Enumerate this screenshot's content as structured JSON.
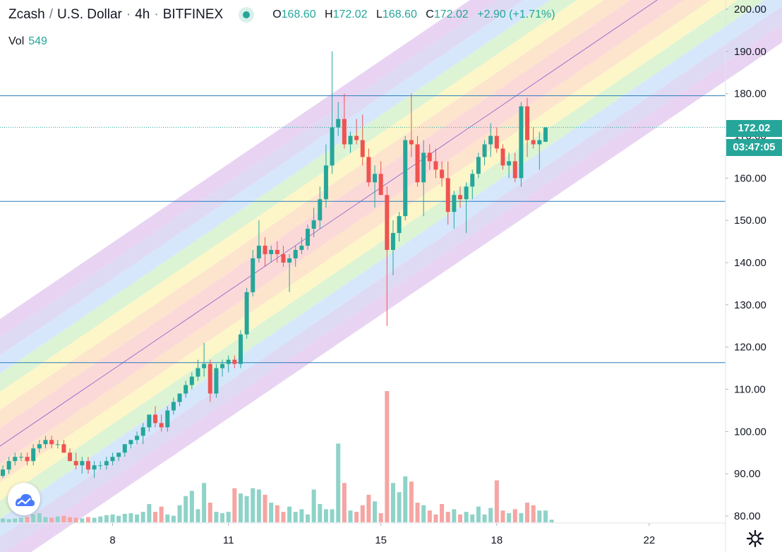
{
  "header": {
    "symbol": "Zcash",
    "quote": "U.S. Dollar",
    "interval": "4h",
    "exchange": "BITFINEX",
    "separator": "/",
    "dot": "·",
    "open_label": "O",
    "open": "168.60",
    "high_label": "H",
    "high": "172.02",
    "low_label": "L",
    "low": "168.60",
    "close_label": "C",
    "close": "172.02",
    "change": "+2.90 (+1.71%)",
    "vol_label": "Vol",
    "vol": "549"
  },
  "price_tag": {
    "price": "172.02",
    "countdown": "03:47:05"
  },
  "colors": {
    "up": "#26a69a",
    "down": "#ef5350",
    "hline": "#2a7bbd",
    "axis_text": "#131722"
  },
  "icons": {
    "logo": "tradingview-cloud-icon",
    "settings": "gear-icon"
  },
  "chart_data": {
    "type": "candlestick",
    "y_axis": {
      "min": 80,
      "max": 200,
      "ticks": [
        "80.00",
        "90.00",
        "100.00",
        "110.00",
        "120.00",
        "130.00",
        "140.00",
        "150.00",
        "160.00",
        "170.00",
        "180.00",
        "190.00",
        "200.00"
      ]
    },
    "x_axis": {
      "ticks": [
        "8",
        "11",
        "15",
        "18",
        "22"
      ]
    },
    "horizontal_lines": [
      179.5,
      154.5,
      116.3
    ],
    "last_price_line": 172.02,
    "rainbow_channel": {
      "start_mid": 97,
      "slope_per_bar": 0.98,
      "band_width": 4.3,
      "bands": 7
    },
    "candles": [
      {
        "o": 89.5,
        "h": 92,
        "l": 89,
        "c": 91
      },
      {
        "o": 91,
        "h": 94,
        "l": 90,
        "c": 93
      },
      {
        "o": 93,
        "h": 95,
        "l": 92,
        "c": 94
      },
      {
        "o": 94,
        "h": 95,
        "l": 93,
        "c": 94
      },
      {
        "o": 94,
        "h": 95,
        "l": 92,
        "c": 93
      },
      {
        "o": 93,
        "h": 97,
        "l": 92,
        "c": 96
      },
      {
        "o": 96,
        "h": 98,
        "l": 95,
        "c": 97
      },
      {
        "o": 97,
        "h": 99,
        "l": 96,
        "c": 98
      },
      {
        "o": 98,
        "h": 99,
        "l": 96,
        "c": 97
      },
      {
        "o": 97,
        "h": 98,
        "l": 96,
        "c": 97
      },
      {
        "o": 97,
        "h": 98,
        "l": 95,
        "c": 95
      },
      {
        "o": 95,
        "h": 96,
        "l": 93,
        "c": 93
      },
      {
        "o": 93,
        "h": 95,
        "l": 91,
        "c": 92
      },
      {
        "o": 92,
        "h": 94,
        "l": 90,
        "c": 93
      },
      {
        "o": 93,
        "h": 94,
        "l": 90,
        "c": 91
      },
      {
        "o": 91,
        "h": 93,
        "l": 89,
        "c": 92
      },
      {
        "o": 92,
        "h": 93,
        "l": 91,
        "c": 92
      },
      {
        "o": 92,
        "h": 94,
        "l": 91,
        "c": 93
      },
      {
        "o": 93,
        "h": 95,
        "l": 92,
        "c": 94
      },
      {
        "o": 94,
        "h": 95,
        "l": 93,
        "c": 95
      },
      {
        "o": 95,
        "h": 97,
        "l": 94,
        "c": 97
      },
      {
        "o": 97,
        "h": 98,
        "l": 96,
        "c": 98
      },
      {
        "o": 98,
        "h": 100,
        "l": 97,
        "c": 99
      },
      {
        "o": 99,
        "h": 102,
        "l": 97,
        "c": 101
      },
      {
        "o": 101,
        "h": 104,
        "l": 100,
        "c": 104
      },
      {
        "o": 104,
        "h": 106,
        "l": 101,
        "c": 102
      },
      {
        "o": 102,
        "h": 104,
        "l": 100,
        "c": 101
      },
      {
        "o": 101,
        "h": 106,
        "l": 100,
        "c": 105
      },
      {
        "o": 105,
        "h": 108,
        "l": 104,
        "c": 107
      },
      {
        "o": 107,
        "h": 109,
        "l": 106,
        "c": 109
      },
      {
        "o": 109,
        "h": 112,
        "l": 108,
        "c": 111
      },
      {
        "o": 111,
        "h": 114,
        "l": 110,
        "c": 113
      },
      {
        "o": 113,
        "h": 117,
        "l": 112,
        "c": 115
      },
      {
        "o": 115,
        "h": 121,
        "l": 113,
        "c": 116
      },
      {
        "o": 116,
        "h": 117,
        "l": 107,
        "c": 109
      },
      {
        "o": 109,
        "h": 116,
        "l": 108,
        "c": 115
      },
      {
        "o": 115,
        "h": 117,
        "l": 113,
        "c": 116
      },
      {
        "o": 116,
        "h": 118,
        "l": 114,
        "c": 117
      },
      {
        "o": 117,
        "h": 118,
        "l": 115,
        "c": 116
      },
      {
        "o": 116,
        "h": 124,
        "l": 115,
        "c": 123
      },
      {
        "o": 123,
        "h": 134,
        "l": 122,
        "c": 133
      },
      {
        "o": 133,
        "h": 143,
        "l": 132,
        "c": 141
      },
      {
        "o": 141,
        "h": 150,
        "l": 140,
        "c": 144
      },
      {
        "o": 144,
        "h": 146,
        "l": 139,
        "c": 142
      },
      {
        "o": 142,
        "h": 144,
        "l": 140,
        "c": 143
      },
      {
        "o": 143,
        "h": 145,
        "l": 140,
        "c": 142
      },
      {
        "o": 142,
        "h": 144,
        "l": 139,
        "c": 140
      },
      {
        "o": 140,
        "h": 142,
        "l": 133,
        "c": 141
      },
      {
        "o": 141,
        "h": 144,
        "l": 139,
        "c": 143
      },
      {
        "o": 143,
        "h": 146,
        "l": 142,
        "c": 144
      },
      {
        "o": 144,
        "h": 149,
        "l": 143,
        "c": 148
      },
      {
        "o": 148,
        "h": 153,
        "l": 146,
        "c": 150
      },
      {
        "o": 150,
        "h": 158,
        "l": 148,
        "c": 155
      },
      {
        "o": 155,
        "h": 168,
        "l": 153,
        "c": 163
      },
      {
        "o": 163,
        "h": 190,
        "l": 161,
        "c": 172
      },
      {
        "o": 172,
        "h": 178,
        "l": 170,
        "c": 174
      },
      {
        "o": 174,
        "h": 180,
        "l": 167,
        "c": 168
      },
      {
        "o": 168,
        "h": 171,
        "l": 166,
        "c": 170
      },
      {
        "o": 170,
        "h": 174,
        "l": 168,
        "c": 169
      },
      {
        "o": 169,
        "h": 175,
        "l": 163,
        "c": 165
      },
      {
        "o": 165,
        "h": 167,
        "l": 158,
        "c": 159
      },
      {
        "o": 159,
        "h": 163,
        "l": 153,
        "c": 161
      },
      {
        "o": 161,
        "h": 164,
        "l": 157,
        "c": 156
      },
      {
        "o": 156,
        "h": 158,
        "l": 125,
        "c": 143
      },
      {
        "o": 143,
        "h": 150,
        "l": 137,
        "c": 147
      },
      {
        "o": 147,
        "h": 152,
        "l": 145,
        "c": 151
      },
      {
        "o": 151,
        "h": 170,
        "l": 150,
        "c": 169
      },
      {
        "o": 169,
        "h": 180,
        "l": 165,
        "c": 168
      },
      {
        "o": 168,
        "h": 170,
        "l": 158,
        "c": 159
      },
      {
        "o": 159,
        "h": 169,
        "l": 151,
        "c": 166
      },
      {
        "o": 166,
        "h": 168,
        "l": 162,
        "c": 164
      },
      {
        "o": 164,
        "h": 167,
        "l": 160,
        "c": 162
      },
      {
        "o": 162,
        "h": 164,
        "l": 158,
        "c": 160
      },
      {
        "o": 160,
        "h": 164,
        "l": 149,
        "c": 152
      },
      {
        "o": 152,
        "h": 157,
        "l": 148,
        "c": 156
      },
      {
        "o": 156,
        "h": 158,
        "l": 153,
        "c": 155
      },
      {
        "o": 155,
        "h": 159,
        "l": 147,
        "c": 158
      },
      {
        "o": 158,
        "h": 162,
        "l": 155,
        "c": 161
      },
      {
        "o": 161,
        "h": 166,
        "l": 160,
        "c": 165
      },
      {
        "o": 165,
        "h": 169,
        "l": 163,
        "c": 168
      },
      {
        "o": 168,
        "h": 173,
        "l": 165,
        "c": 170
      },
      {
        "o": 170,
        "h": 172,
        "l": 166,
        "c": 167
      },
      {
        "o": 167,
        "h": 168,
        "l": 162,
        "c": 163
      },
      {
        "o": 163,
        "h": 166,
        "l": 160,
        "c": 164
      },
      {
        "o": 164,
        "h": 166,
        "l": 159,
        "c": 160
      },
      {
        "o": 160,
        "h": 178,
        "l": 158,
        "c": 177
      },
      {
        "o": 177,
        "h": 179,
        "l": 165,
        "c": 169
      },
      {
        "o": 169,
        "h": 172,
        "l": 167,
        "c": 168
      },
      {
        "o": 168,
        "h": 171,
        "l": 162,
        "c": 169
      },
      {
        "o": 168.6,
        "h": 172.02,
        "l": 168.6,
        "c": 172.02
      }
    ],
    "volume_max": 200,
    "volumes": [
      6,
      5,
      6,
      7,
      8,
      12,
      14,
      8,
      7,
      9,
      10,
      8,
      7,
      6,
      8,
      7,
      9,
      11,
      12,
      10,
      13,
      14,
      12,
      16,
      28,
      16,
      24,
      12,
      10,
      26,
      40,
      48,
      20,
      60,
      30,
      16,
      14,
      16,
      52,
      44,
      40,
      52,
      50,
      42,
      30,
      26,
      16,
      24,
      16,
      20,
      12,
      50,
      28,
      20,
      20,
      120,
      60,
      18,
      16,
      26,
      42,
      32,
      14,
      200,
      60,
      46,
      70,
      62,
      30,
      26,
      18,
      12,
      28,
      16,
      20,
      12,
      16,
      12,
      24,
      12,
      22,
      64,
      18,
      14,
      20,
      14,
      30,
      26,
      18,
      18,
      4
    ]
  }
}
